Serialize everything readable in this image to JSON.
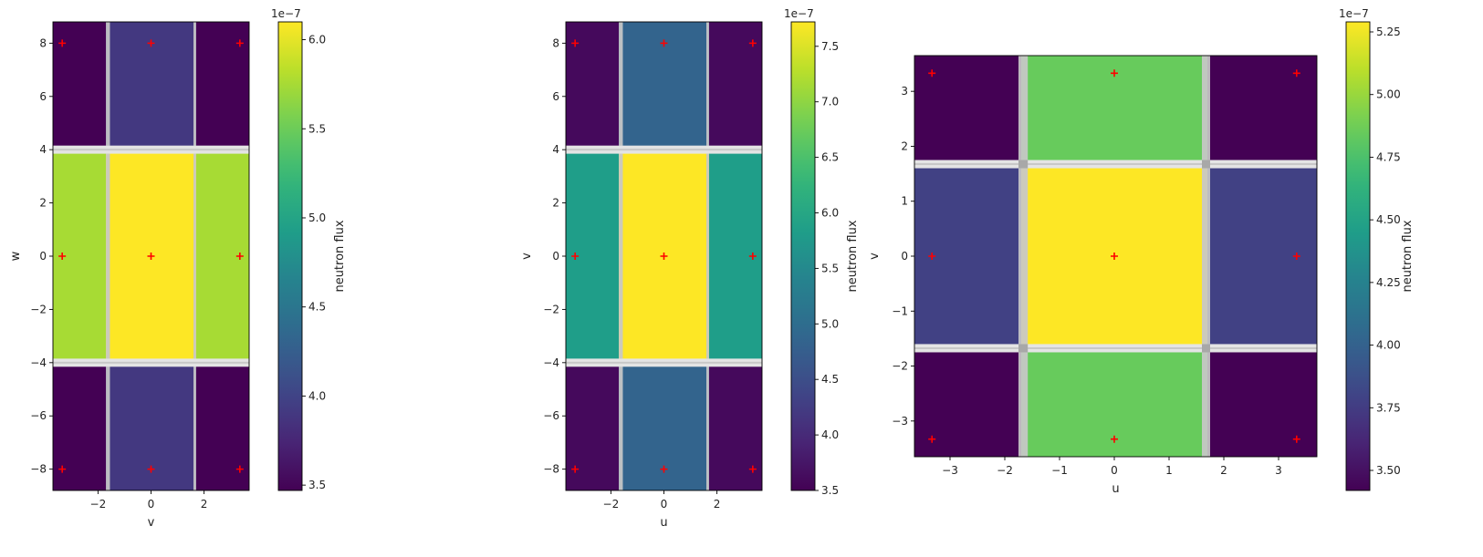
{
  "chart_data": [
    {
      "type": "heatmap",
      "title": "",
      "xlabel": "v",
      "ylabel": "w",
      "xlim": [
        -3.7,
        3.7
      ],
      "ylim": [
        -8.8,
        8.8
      ],
      "xticks": [
        -2,
        0,
        2
      ],
      "yticks": [
        -8,
        -6,
        -4,
        -2,
        0,
        2,
        4,
        6,
        8
      ],
      "xtick_labels": [
        "−2",
        "0",
        "2"
      ],
      "ytick_labels": [
        "−8",
        "−6",
        "−4",
        "−2",
        "0",
        "2",
        "4",
        "6",
        "8"
      ],
      "colorbar": {
        "label": "neutron flux",
        "exponent": "1e−7",
        "range": [
          3.47,
          6.1
        ],
        "ticks": [
          4.0,
          4.5,
          5.0,
          5.5,
          6.0
        ],
        "tick_labels": [
          "4.0",
          "4.5",
          "5.0",
          "5.5",
          "6.0"
        ],
        "extra_ticks": [
          3.5
        ],
        "extra_tick_labels": [
          "3.5"
        ]
      },
      "cells": [
        {
          "x": [
            -3.7,
            -1.7
          ],
          "y": [
            4.15,
            8.8
          ],
          "value": 3.47
        },
        {
          "x": [
            -1.7,
            1.7
          ],
          "y": [
            4.15,
            8.8
          ],
          "value": 3.9
        },
        {
          "x": [
            1.7,
            3.7
          ],
          "y": [
            4.15,
            8.8
          ],
          "value": 3.47
        },
        {
          "x": [
            -3.7,
            -1.7
          ],
          "y": [
            -3.85,
            3.85
          ],
          "value": 5.75
        },
        {
          "x": [
            -1.7,
            1.7
          ],
          "y": [
            -3.85,
            3.85
          ],
          "value": 6.1
        },
        {
          "x": [
            1.7,
            3.7
          ],
          "y": [
            -3.85,
            3.85
          ],
          "value": 5.75
        },
        {
          "x": [
            -3.7,
            -1.7
          ],
          "y": [
            -8.8,
            -4.15
          ],
          "value": 3.47
        },
        {
          "x": [
            -1.7,
            1.7
          ],
          "y": [
            -8.8,
            -4.15
          ],
          "value": 3.9
        },
        {
          "x": [
            1.7,
            3.7
          ],
          "y": [
            -8.8,
            -4.15
          ],
          "value": 3.47
        }
      ],
      "gaps_x": [
        [
          -1.7,
          -1.55
        ],
        [
          1.6,
          1.7
        ]
      ],
      "gaps_y": [
        [
          -4.15,
          -3.85
        ],
        [
          3.85,
          4.15
        ]
      ],
      "markers": [
        [
          -3.35,
          8
        ],
        [
          0,
          8
        ],
        [
          3.35,
          8
        ],
        [
          -3.35,
          0
        ],
        [
          0,
          0
        ],
        [
          3.35,
          0
        ],
        [
          -3.35,
          -8
        ],
        [
          0,
          -8
        ],
        [
          3.35,
          -8
        ]
      ]
    },
    {
      "type": "heatmap",
      "title": "",
      "xlabel": "u",
      "ylabel": "v",
      "xlim": [
        -3.7,
        3.7
      ],
      "ylim": [
        -8.8,
        8.8
      ],
      "xticks": [
        -2,
        0,
        2
      ],
      "yticks": [
        -8,
        -6,
        -4,
        -2,
        0,
        2,
        4,
        6,
        8
      ],
      "xtick_labels": [
        "−2",
        "0",
        "2"
      ],
      "ytick_labels": [
        "−8",
        "−6",
        "−4",
        "−2",
        "0",
        "2",
        "4",
        "6",
        "8"
      ],
      "colorbar": {
        "label": "neutron flux",
        "exponent": "1e−7",
        "range": [
          3.5,
          7.72
        ],
        "ticks": [
          3.5,
          4.0,
          4.5,
          5.0,
          5.5,
          6.0,
          6.5,
          7.0,
          7.5
        ],
        "tick_labels": [
          "3.5",
          "4.0",
          "4.5",
          "5.0",
          "5.5",
          "6.0",
          "6.5",
          "7.0",
          "7.5"
        ]
      },
      "cells": [
        {
          "x": [
            -3.7,
            -1.7
          ],
          "y": [
            4.15,
            8.8
          ],
          "value": 3.6
        },
        {
          "x": [
            -1.7,
            1.7
          ],
          "y": [
            4.15,
            8.8
          ],
          "value": 4.85
        },
        {
          "x": [
            1.7,
            3.7
          ],
          "y": [
            4.15,
            8.8
          ],
          "value": 3.6
        },
        {
          "x": [
            -3.7,
            -1.7
          ],
          "y": [
            -3.85,
            3.85
          ],
          "value": 5.85
        },
        {
          "x": [
            -1.7,
            1.7
          ],
          "y": [
            -3.85,
            3.85
          ],
          "value": 7.72
        },
        {
          "x": [
            1.7,
            3.7
          ],
          "y": [
            -3.85,
            3.85
          ],
          "value": 5.85
        },
        {
          "x": [
            -3.7,
            -1.7
          ],
          "y": [
            -8.8,
            -4.15
          ],
          "value": 3.6
        },
        {
          "x": [
            -1.7,
            1.7
          ],
          "y": [
            -8.8,
            -4.15
          ],
          "value": 4.85
        },
        {
          "x": [
            1.7,
            3.7
          ],
          "y": [
            -8.8,
            -4.15
          ],
          "value": 3.6
        }
      ],
      "gaps_x": [
        [
          -1.7,
          -1.55
        ],
        [
          1.6,
          1.7
        ]
      ],
      "gaps_y": [
        [
          -4.15,
          -3.85
        ],
        [
          3.85,
          4.15
        ]
      ],
      "markers": [
        [
          -3.35,
          8
        ],
        [
          0,
          8
        ],
        [
          3.35,
          8
        ],
        [
          -3.35,
          0
        ],
        [
          0,
          0
        ],
        [
          3.35,
          0
        ],
        [
          -3.35,
          -8
        ],
        [
          0,
          -8
        ],
        [
          3.35,
          -8
        ]
      ]
    },
    {
      "type": "heatmap",
      "title": "",
      "xlabel": "u",
      "ylabel": "v",
      "xlim": [
        -3.65,
        3.7
      ],
      "ylim": [
        -3.65,
        3.65
      ],
      "xticks": [
        -3,
        -2,
        -1,
        0,
        1,
        2,
        3
      ],
      "yticks": [
        -3,
        -2,
        -1,
        0,
        1,
        2,
        3
      ],
      "xtick_labels": [
        "−3",
        "−2",
        "−1",
        "0",
        "1",
        "2",
        "3"
      ],
      "ytick_labels": [
        "−3",
        "−2",
        "−1",
        "0",
        "1",
        "2",
        "3"
      ],
      "colorbar": {
        "label": "neutron flux",
        "exponent": "1e−7",
        "range": [
          3.42,
          5.29
        ],
        "ticks": [
          3.5,
          3.75,
          4.0,
          4.25,
          4.5,
          4.75,
          5.0,
          5.25
        ],
        "tick_labels": [
          "3.50",
          "3.75",
          "4.00",
          "4.25",
          "4.50",
          "4.75",
          "5.00",
          "5.25"
        ]
      },
      "cells": [
        {
          "x": [
            -3.65,
            -1.7
          ],
          "y": [
            1.7,
            3.65
          ],
          "value": 3.42
        },
        {
          "x": [
            -1.7,
            1.7
          ],
          "y": [
            1.7,
            3.65
          ],
          "value": 4.85
        },
        {
          "x": [
            1.7,
            3.7
          ],
          "y": [
            1.7,
            3.65
          ],
          "value": 3.42
        },
        {
          "x": [
            -3.65,
            -1.7
          ],
          "y": [
            -1.7,
            1.7
          ],
          "value": 3.78
        },
        {
          "x": [
            -1.7,
            1.7
          ],
          "y": [
            -1.7,
            1.7
          ],
          "value": 5.29
        },
        {
          "x": [
            1.7,
            3.7
          ],
          "y": [
            -1.7,
            1.7
          ],
          "value": 3.78
        },
        {
          "x": [
            -3.65,
            -1.7
          ],
          "y": [
            -3.65,
            -1.7
          ],
          "value": 3.42
        },
        {
          "x": [
            -1.7,
            1.7
          ],
          "y": [
            -3.65,
            -1.7
          ],
          "value": 4.85
        },
        {
          "x": [
            1.7,
            3.7
          ],
          "y": [
            -3.65,
            -1.7
          ],
          "value": 3.42
        }
      ],
      "gaps_x": [
        [
          -1.75,
          -1.58
        ],
        [
          1.6,
          1.75
        ]
      ],
      "gaps_y": [
        [
          -1.75,
          -1.6
        ],
        [
          1.6,
          1.75
        ]
      ],
      "markers": [
        [
          -3.33,
          3.33
        ],
        [
          0,
          3.33
        ],
        [
          3.33,
          3.33
        ],
        [
          -3.33,
          0
        ],
        [
          0,
          0
        ],
        [
          3.33,
          0
        ],
        [
          -3.33,
          -3.33
        ],
        [
          0,
          -3.33
        ],
        [
          3.33,
          -3.33
        ]
      ]
    }
  ],
  "colors": {
    "marker": "#ff0000",
    "gap": "#c8c8c8",
    "gap_light": "#e4e4e4",
    "gap_cross": "#a8a8a8",
    "axis": "#000000"
  }
}
